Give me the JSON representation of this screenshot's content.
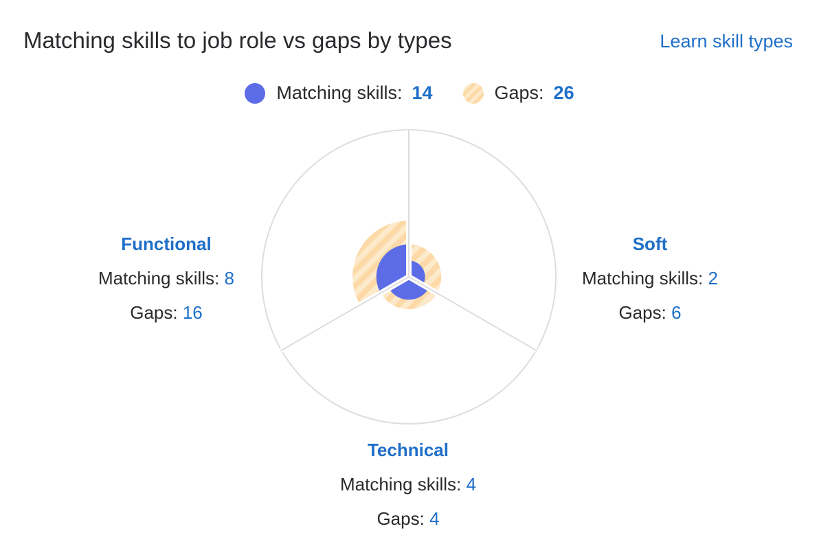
{
  "header": {
    "title": "Matching skills to job role vs gaps by types",
    "learn_link": "Learn skill types"
  },
  "legend": {
    "matching_label": "Matching skills:",
    "matching_total": "14",
    "gaps_label": "Gaps:",
    "gaps_total": "26"
  },
  "colors": {
    "matching": "#5b6ce6",
    "gaps_stripe_a": "#fcd9a6",
    "gaps_stripe_b": "#fdeacb",
    "accent_text": "#1f6fc8",
    "outline": "#dddddd"
  },
  "chart_data": {
    "type": "radial-bar",
    "title": "Matching skills to job role vs gaps by types",
    "series": [
      {
        "name": "Matching skills",
        "values": [
          2,
          4,
          8
        ]
      },
      {
        "name": "Gaps",
        "values": [
          6,
          4,
          16
        ]
      }
    ],
    "categories": [
      "Soft",
      "Technical",
      "Functional"
    ],
    "segments": [
      {
        "name": "Soft",
        "matching_label": "Matching skills:",
        "matching": 2,
        "gaps_label": "Gaps:",
        "gaps": 6
      },
      {
        "name": "Technical",
        "matching_label": "Matching skills:",
        "matching": 4,
        "gaps_label": "Gaps:",
        "gaps": 4
      },
      {
        "name": "Functional",
        "matching_label": "Matching skills:",
        "matching": 8,
        "gaps_label": "Gaps:",
        "gaps": 16
      }
    ],
    "radial_max": 25
  }
}
